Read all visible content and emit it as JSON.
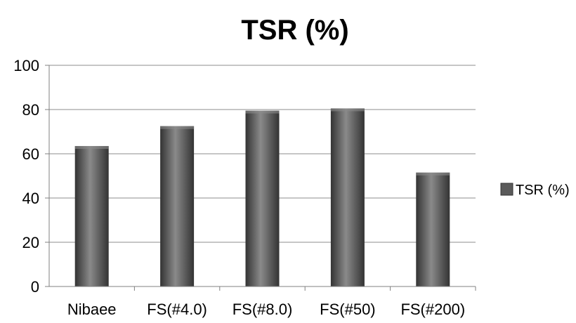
{
  "chart_data": {
    "type": "bar",
    "title": "TSR (%)",
    "xlabel": "",
    "ylabel": "",
    "categories": [
      "Nibaee",
      "FS(#4.0)",
      "FS(#8.0)",
      "FS(#50)",
      "FS(#200)"
    ],
    "series": [
      {
        "name": "TSR (%)",
        "values": [
          63.5,
          72.5,
          79.5,
          80.5,
          51.5
        ]
      }
    ],
    "ylim": [
      0,
      100
    ],
    "yticks": [
      "0",
      "20",
      "40",
      "60",
      "80",
      "100"
    ],
    "grid": true,
    "legend_position": "right",
    "colors": {
      "bar": "#5a5a5a",
      "bar_highlight": "#8a8a8a",
      "bar_shadow": "#333333",
      "grid": "#8c8c8c",
      "axis": "#808080"
    }
  }
}
